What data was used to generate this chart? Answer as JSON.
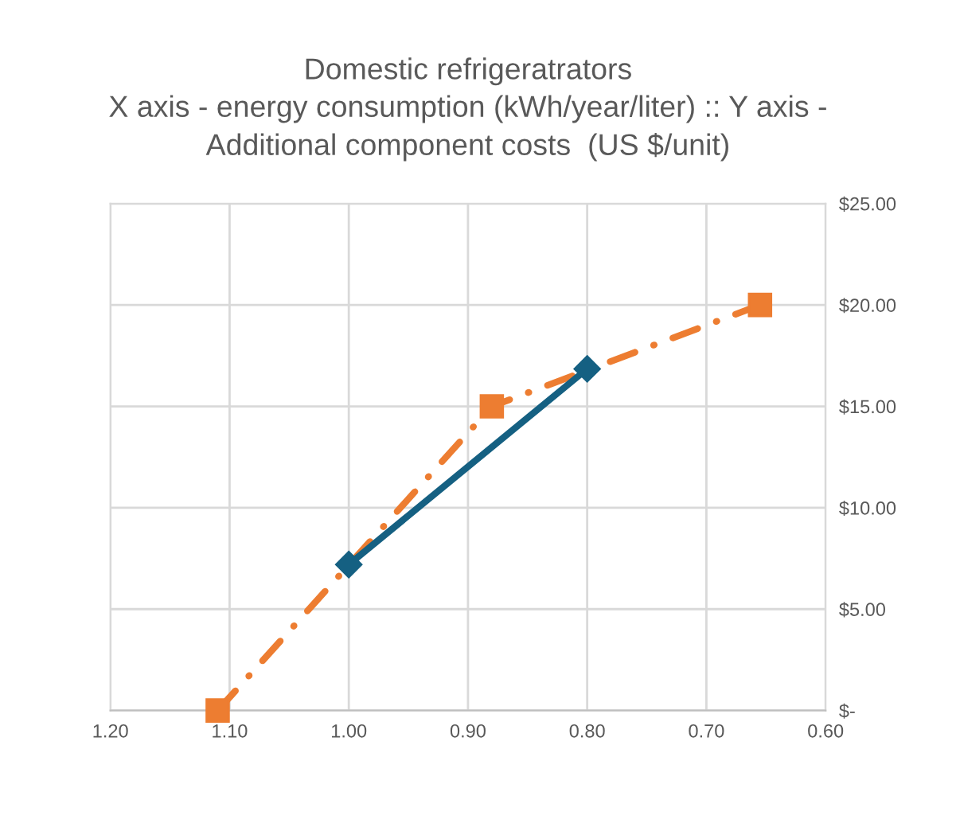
{
  "chart_data": {
    "type": "line",
    "title": "Domestic refrigeratrators\nX axis - energy consumption (kWh/year/liter) :: Y axis -\nAdditional component costs  (US $/unit)",
    "series": [
      {
        "color": "#ed7d31",
        "x": [
          1.11,
          0.88,
          0.655
        ],
        "values": [
          0,
          15,
          20
        ],
        "marker": "square",
        "line_style": "dashdot"
      },
      {
        "color": "#156082",
        "x": [
          1.0,
          0.8
        ],
        "values": [
          7.2,
          16.85
        ],
        "marker": "diamond",
        "line_style": "solid"
      }
    ],
    "xlim": [
      1.2,
      0.6
    ],
    "xticks": [
      {
        "value": 1.2,
        "label": "1.20"
      },
      {
        "value": 1.1,
        "label": "1.10"
      },
      {
        "value": 1.0,
        "label": "1.00"
      },
      {
        "value": 0.9,
        "label": "0.90"
      },
      {
        "value": 0.8,
        "label": "0.80"
      },
      {
        "value": 0.7,
        "label": "0.70"
      },
      {
        "value": 0.6,
        "label": "0.60"
      }
    ],
    "ylim": [
      0,
      25
    ],
    "yticks": [
      {
        "value": 0,
        "label": "$-"
      },
      {
        "value": 5,
        "label": "$5.00"
      },
      {
        "value": 10,
        "label": "$10.00"
      },
      {
        "value": 15,
        "label": "$15.00"
      },
      {
        "value": 20,
        "label": "$20.00"
      },
      {
        "value": 25,
        "label": "$25.00"
      }
    ],
    "grid": true
  }
}
